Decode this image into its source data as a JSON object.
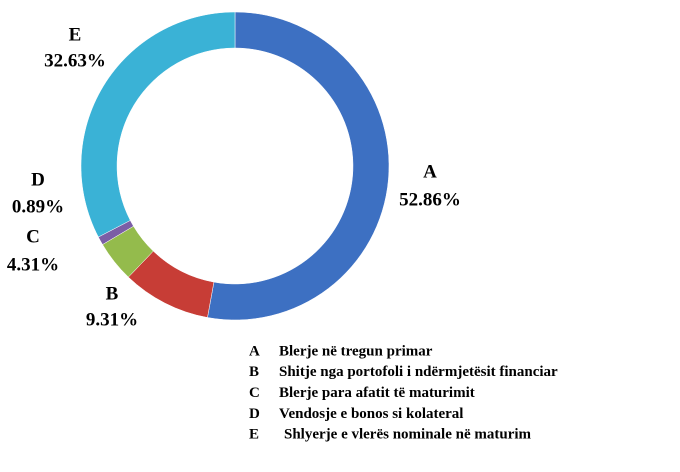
{
  "chart_data": {
    "type": "donut",
    "categories": [
      "A",
      "B",
      "C",
      "D",
      "E"
    ],
    "values": [
      52.86,
      9.31,
      4.31,
      0.89,
      32.63
    ],
    "value_labels": [
      "52.86%",
      "9.31%",
      "4.31%",
      "0.89%",
      "32.63%"
    ],
    "colors": [
      "#3d70c2",
      "#c73d36",
      "#94bb4c",
      "#7b5ea6",
      "#3ab2d6"
    ],
    "legend": [
      {
        "key": "A",
        "label": "Blerje në tregun primar"
      },
      {
        "key": "B",
        "label": "Shitje nga portofoli i ndërmjetësit financiar"
      },
      {
        "key": "C",
        "label": "Blerje para afatit të maturimit"
      },
      {
        "key": "D",
        "label": "Vendosje e bonos si kolateral"
      },
      {
        "key": "E",
        "label": "Shlyerje e vlerës nominale në maturim"
      }
    ]
  }
}
